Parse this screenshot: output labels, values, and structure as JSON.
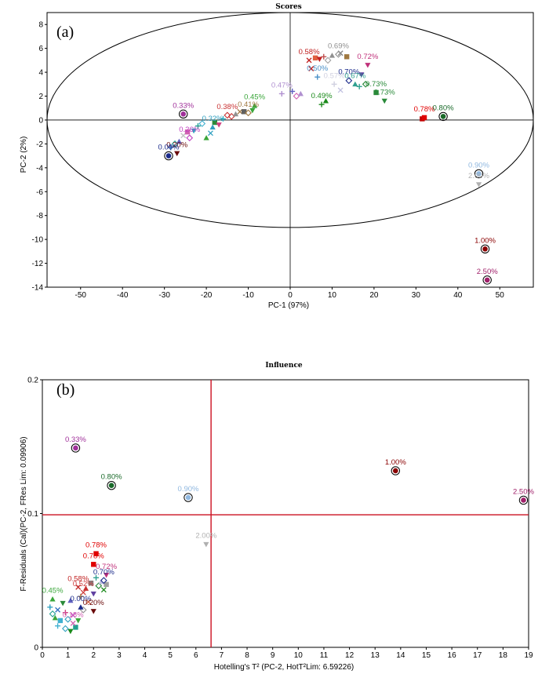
{
  "chart_data": [
    {
      "panel_label": "(a)",
      "type": "scatter",
      "title": "Scores",
      "xlabel": "PC-1 (97%)",
      "ylabel": "PC-2 (2%)",
      "xlim": [
        -58,
        58
      ],
      "ylim": [
        -14,
        9
      ],
      "xticks": [
        -50,
        -40,
        -30,
        -20,
        -10,
        0,
        10,
        20,
        30,
        40,
        50
      ],
      "yticks": [
        -14,
        -12,
        -10,
        -8,
        -6,
        -4,
        -2,
        0,
        2,
        4,
        6,
        8
      ],
      "confidence_ellipse": {
        "cx": 0,
        "cy": 0,
        "rx": 58,
        "ry": 9
      },
      "labeled_points": [
        {
          "label": "0.33%",
          "x": -25.5,
          "y": 0.5,
          "color": "#a0309a",
          "marker": "circled"
        },
        {
          "label": "0.45%",
          "x": -8.5,
          "y": 1.2,
          "color": "#3aa63a",
          "marker": "triangle"
        },
        {
          "label": "0.47%",
          "x": -2.0,
          "y": 2.2,
          "color": "#b090d0",
          "marker": "plus"
        },
        {
          "label": "0.50%",
          "x": 6.5,
          "y": 3.6,
          "color": "#4a90c8",
          "marker": "plus"
        },
        {
          "label": "0.57%",
          "x": 10.5,
          "y": 3.0,
          "color": "#d0d0e0",
          "marker": "plus"
        },
        {
          "label": "0.58%",
          "x": 4.5,
          "y": 5.0,
          "color": "#c02020",
          "marker": "x"
        },
        {
          "label": "0.69%",
          "x": 11.5,
          "y": 5.5,
          "color": "#909090",
          "marker": "diamond"
        },
        {
          "label": "0.72%",
          "x": 18.5,
          "y": 4.6,
          "color": "#c0307a",
          "marker": "tri-down"
        },
        {
          "label": "0.70%",
          "x": 14.0,
          "y": 3.3,
          "color": "#1a2a8a",
          "marker": "diamond"
        },
        {
          "label": "0.67%",
          "x": 15.5,
          "y": 3.0,
          "color": "#30a090",
          "marker": "triangle"
        },
        {
          "label": "0.73%",
          "x": 20.5,
          "y": 2.3,
          "color": "#2a8a3a",
          "marker": "square"
        },
        {
          "label": "0.73%",
          "x": 22.5,
          "y": 1.6,
          "color": "#2a8a3a",
          "marker": "tri-down"
        },
        {
          "label": "0.49%",
          "x": 7.5,
          "y": 1.3,
          "color": "#1a8a1a",
          "marker": "plus"
        },
        {
          "label": "0.78%",
          "x": 32.0,
          "y": 0.2,
          "color": "#e00000",
          "marker": "square"
        },
        {
          "label": "0.80%",
          "x": 36.5,
          "y": 0.3,
          "color": "#1a6a2a",
          "marker": "circled"
        },
        {
          "label": "0.90%",
          "x": 45.0,
          "y": -4.5,
          "color": "#90b8e0",
          "marker": "circled"
        },
        {
          "label": "2.00%",
          "x": 45.0,
          "y": -5.4,
          "color": "#b0b0b0",
          "marker": "tri-down"
        },
        {
          "label": "1.00%",
          "x": 46.5,
          "y": -10.8,
          "color": "#8a0000",
          "marker": "circled"
        },
        {
          "label": "2.50%",
          "x": 47.0,
          "y": -13.4,
          "color": "#a0206a",
          "marker": "circled"
        },
        {
          "label": "0.20%",
          "x": -27.0,
          "y": -2.8,
          "color": "#6a0a0a",
          "marker": "tri-down"
        },
        {
          "label": "0.00%",
          "x": -29.0,
          "y": -3.0,
          "color": "#1a2a8a",
          "marker": "circled"
        },
        {
          "label": "0.26%",
          "x": -24.0,
          "y": -1.5,
          "color": "#c040c0",
          "marker": "diamond"
        },
        {
          "label": "0.38%",
          "x": -15.0,
          "y": 0.4,
          "color": "#c83030",
          "marker": "diamond"
        },
        {
          "label": "0.41%",
          "x": -10.0,
          "y": 0.6,
          "color": "#a07840",
          "marker": "diamond"
        },
        {
          "label": "0.32%",
          "x": -18.5,
          "y": -0.6,
          "color": "#30a0c0",
          "marker": "triangle"
        }
      ],
      "cluster_points": [
        {
          "x": -28.5,
          "y": -2.3,
          "color": "#3070c0"
        },
        {
          "x": -27.5,
          "y": -2.0,
          "color": "#20a090"
        },
        {
          "x": -26.5,
          "y": -1.8,
          "color": "#6060c0"
        },
        {
          "x": -25.5,
          "y": -1.3,
          "color": "#c0c0c0"
        },
        {
          "x": -24.5,
          "y": -1.0,
          "color": "#d060b0"
        },
        {
          "x": -23.0,
          "y": -0.9,
          "color": "#30a0c0"
        },
        {
          "x": -22.0,
          "y": -0.5,
          "color": "#20a090"
        },
        {
          "x": -21.0,
          "y": -0.3,
          "color": "#40b0d0"
        },
        {
          "x": -20.0,
          "y": -1.5,
          "color": "#3aa63a"
        },
        {
          "x": -19.0,
          "y": -1.1,
          "color": "#30a0c0"
        },
        {
          "x": -18.0,
          "y": -0.2,
          "color": "#2a8a3a"
        },
        {
          "x": -17.0,
          "y": -0.4,
          "color": "#d04080"
        },
        {
          "x": -16.0,
          "y": 0.1,
          "color": "#30b0c0"
        },
        {
          "x": -14.0,
          "y": 0.3,
          "color": "#c83030"
        },
        {
          "x": -13.0,
          "y": 0.5,
          "color": "#909090"
        },
        {
          "x": -12.0,
          "y": 0.7,
          "color": "#a07840"
        },
        {
          "x": -11.0,
          "y": 0.7,
          "color": "#606060"
        },
        {
          "x": -9.0,
          "y": 0.8,
          "color": "#3aa63a"
        },
        {
          "x": 0.5,
          "y": 2.4,
          "color": "#6060c0"
        },
        {
          "x": 1.5,
          "y": 2.0,
          "color": "#d060b0"
        },
        {
          "x": 2.5,
          "y": 2.2,
          "color": "#b090d0"
        },
        {
          "x": 5.0,
          "y": 4.3,
          "color": "#c02020"
        },
        {
          "x": 6.0,
          "y": 5.2,
          "color": "#e06040"
        },
        {
          "x": 7.0,
          "y": 5.1,
          "color": "#c02020"
        },
        {
          "x": 8.0,
          "y": 5.3,
          "color": "#c05050"
        },
        {
          "x": 9.0,
          "y": 5.0,
          "color": "#a0a0a0"
        },
        {
          "x": 10.0,
          "y": 5.4,
          "color": "#909090"
        },
        {
          "x": 12.0,
          "y": 5.6,
          "color": "#808080"
        },
        {
          "x": 13.5,
          "y": 5.3,
          "color": "#a07840"
        },
        {
          "x": 17.0,
          "y": 3.8,
          "color": "#6040a0"
        },
        {
          "x": 16.5,
          "y": 2.8,
          "color": "#30a090"
        },
        {
          "x": 18.0,
          "y": 3.0,
          "color": "#2a8a3a"
        },
        {
          "x": 8.5,
          "y": 1.6,
          "color": "#1a8a1a"
        },
        {
          "x": 12.0,
          "y": 2.5,
          "color": "#c0c0e0"
        },
        {
          "x": 31.5,
          "y": 0.1,
          "color": "#c00000"
        }
      ]
    },
    {
      "panel_label": "(b)",
      "type": "scatter",
      "title": "Influence",
      "xlabel": "Hotelling's T² (PC-2, HotT²Lim: 6.59226)",
      "ylabel": "F-Residuals (Cal)(PC-2, FRes Lim: 0.09906)",
      "xlim": [
        0,
        19
      ],
      "ylim": [
        0,
        0.2
      ],
      "xticks": [
        0,
        1,
        2,
        3,
        4,
        5,
        6,
        7,
        8,
        9,
        10,
        11,
        12,
        13,
        14,
        15,
        16,
        17,
        18,
        19
      ],
      "yticks": [
        0,
        0.1,
        0.2
      ],
      "ytick_labels": [
        "0",
        "0.1",
        "0.2"
      ],
      "limit_lines": {
        "x": 6.59226,
        "y": 0.09906
      },
      "labeled_points": [
        {
          "label": "0.33%",
          "x": 1.3,
          "y": 0.149,
          "color": "#a0309a",
          "marker": "circled"
        },
        {
          "label": "0.80%",
          "x": 2.7,
          "y": 0.121,
          "color": "#1a6a2a",
          "marker": "circled"
        },
        {
          "label": "0.90%",
          "x": 5.7,
          "y": 0.112,
          "color": "#90b8e0",
          "marker": "circled"
        },
        {
          "label": "2.00%",
          "x": 6.4,
          "y": 0.077,
          "color": "#b0b0b0",
          "marker": "tri-down"
        },
        {
          "label": "1.00%",
          "x": 13.8,
          "y": 0.132,
          "color": "#8a0000",
          "marker": "circled"
        },
        {
          "label": "2.50%",
          "x": 18.8,
          "y": 0.11,
          "color": "#a0206a",
          "marker": "circled"
        },
        {
          "label": "0.78%",
          "x": 2.1,
          "y": 0.07,
          "color": "#e00000",
          "marker": "square"
        },
        {
          "label": "0.78%",
          "x": 2.0,
          "y": 0.062,
          "color": "#e00000",
          "marker": "square"
        },
        {
          "label": "0.72%",
          "x": 2.5,
          "y": 0.054,
          "color": "#c0307a",
          "marker": "tri-down"
        },
        {
          "label": "0.70%",
          "x": 2.4,
          "y": 0.05,
          "color": "#1a2a8a",
          "marker": "diamond"
        },
        {
          "label": "0.58%",
          "x": 1.4,
          "y": 0.045,
          "color": "#c02020",
          "marker": "x"
        },
        {
          "label": "0.52%",
          "x": 1.6,
          "y": 0.041,
          "color": "#d04040",
          "marker": "x"
        },
        {
          "label": "0.45%",
          "x": 0.4,
          "y": 0.036,
          "color": "#3aa63a",
          "marker": "triangle"
        },
        {
          "label": "0.00%",
          "x": 1.5,
          "y": 0.03,
          "color": "#1a2a8a",
          "marker": "triangle"
        },
        {
          "label": "0.20%",
          "x": 2.0,
          "y": 0.027,
          "color": "#6a0a0a",
          "marker": "tri-down"
        },
        {
          "label": "0.18%",
          "x": 1.2,
          "y": 0.018,
          "color": "#d060b0",
          "marker": "x"
        }
      ],
      "cluster_points": [
        {
          "x": 0.3,
          "y": 0.03,
          "color": "#30a0c0"
        },
        {
          "x": 0.4,
          "y": 0.025,
          "color": "#20a090"
        },
        {
          "x": 0.5,
          "y": 0.022,
          "color": "#3aa63a"
        },
        {
          "x": 0.6,
          "y": 0.028,
          "color": "#3070c0"
        },
        {
          "x": 0.7,
          "y": 0.02,
          "color": "#40b0d0"
        },
        {
          "x": 0.8,
          "y": 0.033,
          "color": "#2a8a3a"
        },
        {
          "x": 0.9,
          "y": 0.026,
          "color": "#d04080"
        },
        {
          "x": 1.0,
          "y": 0.021,
          "color": "#30a0c0"
        },
        {
          "x": 1.1,
          "y": 0.035,
          "color": "#6060c0"
        },
        {
          "x": 1.2,
          "y": 0.024,
          "color": "#c040c0"
        },
        {
          "x": 1.3,
          "y": 0.015,
          "color": "#20a090"
        },
        {
          "x": 1.4,
          "y": 0.02,
          "color": "#3aa63a"
        },
        {
          "x": 1.5,
          "y": 0.038,
          "color": "#a07840"
        },
        {
          "x": 1.6,
          "y": 0.028,
          "color": "#909090"
        },
        {
          "x": 1.7,
          "y": 0.044,
          "color": "#c83030"
        },
        {
          "x": 1.8,
          "y": 0.034,
          "color": "#d06040"
        },
        {
          "x": 1.9,
          "y": 0.048,
          "color": "#808080"
        },
        {
          "x": 2.0,
          "y": 0.04,
          "color": "#6040a0"
        },
        {
          "x": 2.1,
          "y": 0.052,
          "color": "#30a090"
        },
        {
          "x": 2.2,
          "y": 0.046,
          "color": "#2a8a3a"
        },
        {
          "x": 2.3,
          "y": 0.049,
          "color": "#c0c0e0"
        },
        {
          "x": 2.4,
          "y": 0.043,
          "color": "#1a8a1a"
        },
        {
          "x": 2.5,
          "y": 0.047,
          "color": "#a0a0a0"
        },
        {
          "x": 1.1,
          "y": 0.012,
          "color": "#1a8a1a"
        },
        {
          "x": 0.6,
          "y": 0.016,
          "color": "#40b0d0"
        },
        {
          "x": 0.9,
          "y": 0.014,
          "color": "#30a0c0"
        }
      ]
    }
  ]
}
